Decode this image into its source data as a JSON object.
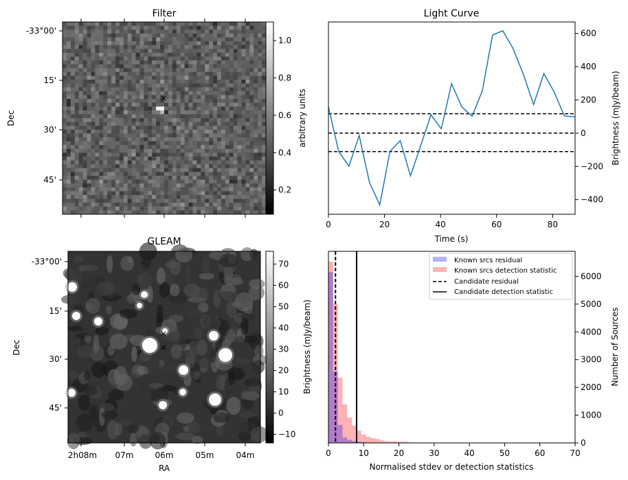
{
  "panels": {
    "filter": {
      "title": "Filter",
      "ylabel": "Dec",
      "dec_ticks": [
        "-33°00'",
        "15'",
        "30'",
        "45'"
      ],
      "colorbar": {
        "label": "arbitrary units",
        "ticks": [
          "0.2",
          "0.4",
          "0.6",
          "0.8",
          "1.0"
        ],
        "range": [
          0.07,
          1.1
        ]
      }
    },
    "gleam": {
      "title": "GLEAM",
      "ylabel": "Dec",
      "xlabel": "RA",
      "dec_ticks": [
        "-33°00'",
        "15'",
        "30'",
        "45'"
      ],
      "ra_ticks": [
        "2h08m",
        "07m",
        "06m",
        "05m",
        "04m"
      ],
      "colorbar": {
        "ticks": [
          "70",
          "60",
          "50",
          "40",
          "30",
          "20",
          "10",
          "0",
          "−10"
        ],
        "range": [
          -14,
          76
        ]
      }
    }
  },
  "chart_data": [
    {
      "type": "line",
      "title": "Light Curve",
      "xlabel": "Time (s)",
      "ylabel": "Brightness (mJy/beam)",
      "xlim": [
        0,
        88
      ],
      "ylim": [
        -488,
        669
      ],
      "xticks": [
        "0",
        "20",
        "40",
        "60",
        "80"
      ],
      "yticks": [
        "−400",
        "−200",
        "0",
        "200",
        "400",
        "600"
      ],
      "ytick_values": [
        -400,
        -200,
        0,
        200,
        400,
        600
      ],
      "xtick_values": [
        0,
        20,
        40,
        60,
        80
      ],
      "dt": 3.66,
      "values": [
        157,
        -110,
        -199,
        -14,
        -296,
        -432,
        -110,
        -45,
        -257,
        -73,
        110,
        26,
        298,
        158,
        102,
        254,
        591,
        616,
        509,
        354,
        172,
        359,
        248,
        103,
        98
      ],
      "hlines": [
        117,
        0,
        -111
      ],
      "color": "#1f77b4"
    },
    {
      "type": "bar",
      "xlabel": "Normalised stdev or detection statistics",
      "ylabel_left": "Brightness (mJy/beam)",
      "ylabel_right": "Number of Sources",
      "xlim": [
        0,
        70
      ],
      "ylim": [
        0,
        6900
      ],
      "xticks": [
        "0",
        "10",
        "20",
        "30",
        "40",
        "50",
        "60",
        "70"
      ],
      "xtick_values": [
        0,
        10,
        20,
        30,
        40,
        50,
        60,
        70
      ],
      "yticks": [
        "0",
        "1000",
        "2000",
        "3000",
        "4000",
        "5000",
        "6000"
      ],
      "ytick_values": [
        0,
        1000,
        2000,
        3000,
        4000,
        5000,
        6000
      ],
      "bin_width": 1.33,
      "series": [
        {
          "name": "Known srcs residual",
          "color": "#0000ff",
          "alpha": 0.3,
          "values": [
            6150,
            2571,
            653,
            196,
            106,
            65,
            41,
            30,
            22,
            18,
            14,
            12,
            10,
            9,
            8,
            7,
            6,
            5,
            4,
            3
          ]
        },
        {
          "name": "Known srcs detection statistic",
          "color": "#ff0000",
          "alpha": 0.3,
          "values": [
            6530,
            5004,
            2351,
            1388,
            914,
            629,
            449,
            302,
            220,
            171,
            139,
            90,
            60,
            55,
            50,
            45,
            40,
            20,
            12,
            10,
            10,
            10,
            10,
            10,
            10,
            10,
            10,
            10,
            10,
            10,
            10,
            10,
            10,
            10,
            10,
            10,
            10,
            10,
            8,
            8,
            8,
            8,
            8,
            8,
            8,
            8,
            8,
            8,
            8,
            8
          ]
        }
      ],
      "vlines": [
        {
          "name": "Candidate residual",
          "x": 2.0,
          "style": "dashed"
        },
        {
          "name": "Candidate detection statistic",
          "x": 8.0,
          "style": "solid"
        }
      ],
      "legend_position": "top-right"
    }
  ]
}
